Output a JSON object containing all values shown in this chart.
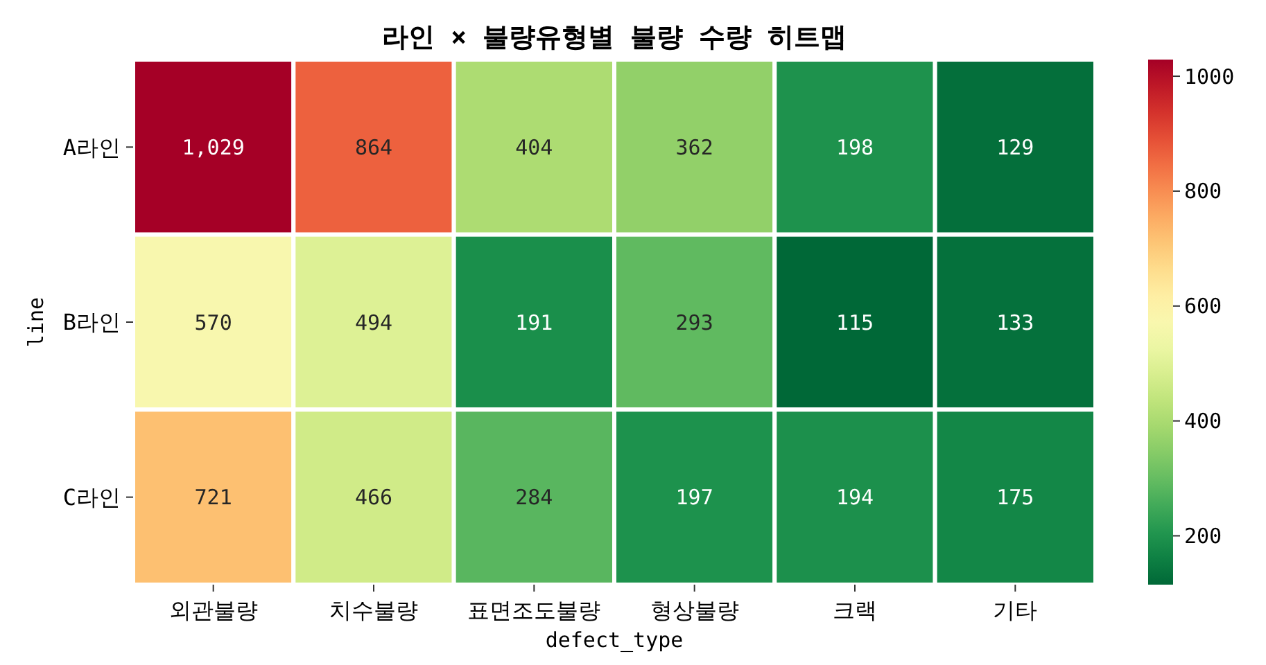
{
  "chart_data": {
    "type": "heatmap",
    "title": "라인 × 불량유형별 불량 수량 히트맵",
    "xlabel": "defect_type",
    "ylabel": "line",
    "categories": [
      "외관불량",
      "치수불량",
      "표면조도불량",
      "형상불량",
      "크랙",
      "기타"
    ],
    "y_categories": [
      "A라인",
      "B라인",
      "C라인"
    ],
    "cells": [
      [
        1029,
        864,
        404,
        362,
        198,
        129
      ],
      [
        570,
        494,
        191,
        293,
        115,
        133
      ],
      [
        721,
        466,
        284,
        197,
        194,
        175
      ]
    ],
    "cell_labels": [
      [
        "1,029",
        "864",
        "404",
        "362",
        "198",
        "129"
      ],
      [
        "570",
        "494",
        "191",
        "293",
        "115",
        "133"
      ],
      [
        "721",
        "466",
        "284",
        "197",
        "194",
        "175"
      ]
    ],
    "clim": [
      115,
      1029
    ],
    "cticks": [
      200,
      400,
      600,
      800,
      1000
    ]
  }
}
